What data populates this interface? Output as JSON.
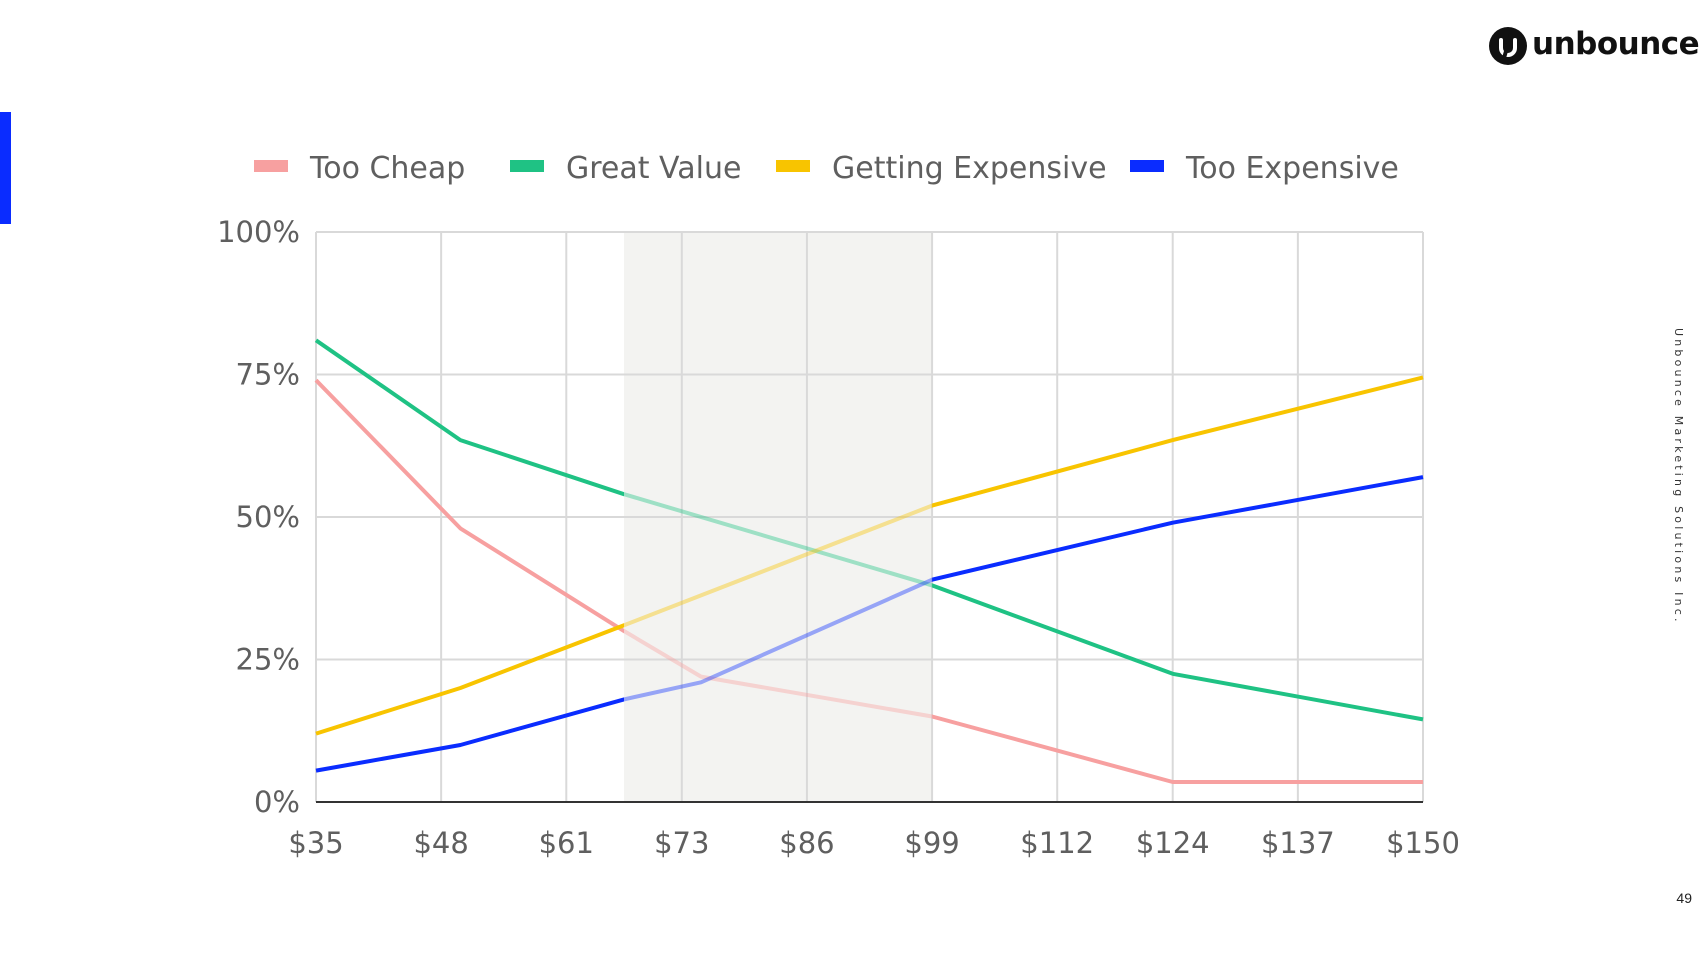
{
  "brand": {
    "logo_text": "unbounce",
    "footer_text": "Unbounce Marketing Solutions Inc.",
    "page_number": "49"
  },
  "colors": {
    "accent": "#0a2cff",
    "band": "#f3f3f1",
    "grid": "#d9d9d9",
    "axis_text": "#5f5f5f"
  },
  "chart_data": {
    "type": "line",
    "x": [
      35,
      48,
      61,
      73,
      86,
      99,
      112,
      124,
      137,
      150
    ],
    "x_tick_labels": [
      "$35",
      "$48",
      "$61",
      "$73",
      "$86",
      "$99",
      "$112",
      "$124",
      "$137",
      "$150"
    ],
    "y_tick_labels": [
      "0%",
      "25%",
      "50%",
      "75%",
      "100%"
    ],
    "ylim": [
      0,
      100
    ],
    "xlim": [
      35,
      150
    ],
    "grid": true,
    "legend_position": "top",
    "highlight_range": [
      67,
      99
    ],
    "series": [
      {
        "name": "Too Cheap",
        "color": "#f7a0a0",
        "points": [
          [
            35,
            74
          ],
          [
            50,
            48
          ],
          [
            67,
            30
          ],
          [
            75,
            22
          ],
          [
            99,
            15
          ],
          [
            124,
            3.5
          ],
          [
            150,
            3.5
          ]
        ]
      },
      {
        "name": "Great Value",
        "color": "#1fc284",
        "points": [
          [
            35,
            81
          ],
          [
            50,
            63.5
          ],
          [
            67,
            54
          ],
          [
            99,
            38
          ],
          [
            124,
            22.5
          ],
          [
            150,
            14.5
          ]
        ]
      },
      {
        "name": "Getting Expensive",
        "color": "#f8c400",
        "points": [
          [
            35,
            12
          ],
          [
            50,
            20
          ],
          [
            67,
            31
          ],
          [
            99,
            52
          ],
          [
            124,
            63.5
          ],
          [
            150,
            74.5
          ]
        ]
      },
      {
        "name": "Too Expensive",
        "color": "#0a2cff",
        "points": [
          [
            35,
            5.5
          ],
          [
            50,
            10
          ],
          [
            67,
            18
          ],
          [
            75,
            21
          ],
          [
            99,
            39
          ],
          [
            124,
            49
          ],
          [
            150,
            57
          ]
        ]
      }
    ]
  }
}
